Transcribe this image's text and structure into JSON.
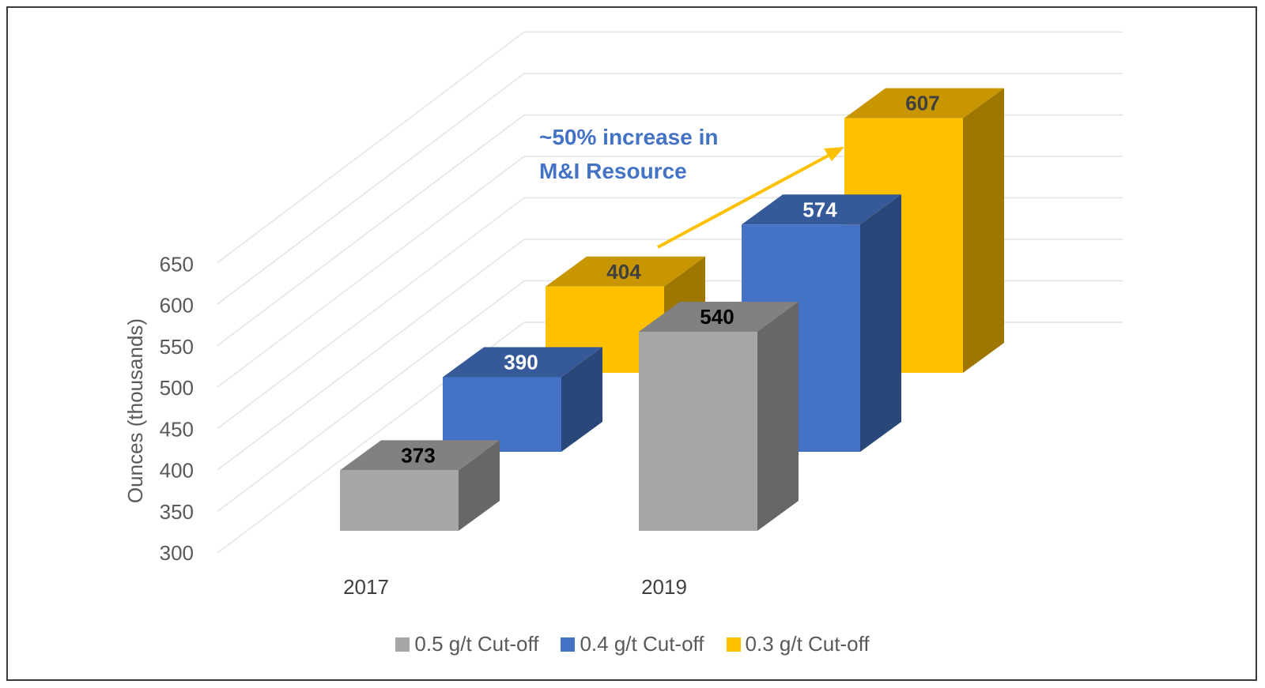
{
  "chart_data": {
    "type": "bar",
    "style": "3d-clustered",
    "ylabel": "Ounces (thousands)",
    "ylim": [
      300,
      650
    ],
    "y_ticks": [
      "650",
      "600",
      "550",
      "500",
      "450",
      "400",
      "350",
      "300"
    ],
    "y_tick_values": [
      650,
      600,
      550,
      500,
      450,
      400,
      350,
      300
    ],
    "categories": [
      "2017",
      "2019"
    ],
    "series": [
      {
        "name": "0.5 g/t Cut-off",
        "values": [
          373,
          540
        ],
        "color": "#a6a6a6",
        "label_color": "#000000"
      },
      {
        "name": "0.4 g/t Cut-off",
        "values": [
          390,
          574
        ],
        "color": "#4472c4",
        "label_color": "#ffffff"
      },
      {
        "name": "0.3 g/t Cut-off",
        "values": [
          404,
          607
        ],
        "color": "#ffc000",
        "label_color": "#404040"
      }
    ],
    "data_labels": [
      [
        "373",
        "540"
      ],
      [
        "390",
        "574"
      ],
      [
        "404",
        "607"
      ]
    ],
    "annotation": {
      "lines": [
        "~50%  increase in",
        "M&I Resource"
      ],
      "color": "#4472c4",
      "arrow_color": "#ffc000"
    },
    "legend_position": "bottom"
  }
}
